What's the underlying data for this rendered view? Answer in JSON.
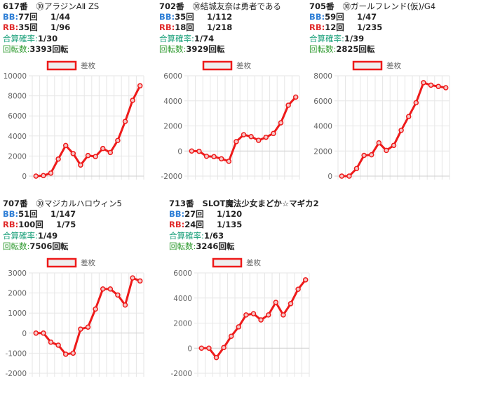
{
  "colors": {
    "bb": "#2f7fd6",
    "rb": "#e02a2a",
    "gassan": "#1aa07a",
    "kaiten": "#2e9a2e",
    "line": "#ee1a1a",
    "grid": "#e6e6e6"
  },
  "labels": {
    "bb": "BB:",
    "rb": "RB:",
    "gassan": "合算確率:",
    "kaiten": "回転数:"
  },
  "legend_label": "差枚",
  "machines": [
    {
      "number": "617番",
      "name": "㉚アラジンAⅡ ZS",
      "bb": "77回",
      "bb_prob": "1/44",
      "rb": "35回",
      "rb_prob": "1/96",
      "gassan": "1/30",
      "kaiten": "3393回転"
    },
    {
      "number": "702番",
      "name": "㉚結城友奈は勇者である",
      "bb": "35回",
      "bb_prob": "1/112",
      "rb": "18回",
      "rb_prob": "1/218",
      "gassan": "1/74",
      "kaiten": "3929回転"
    },
    {
      "number": "705番",
      "name": "㉚ガールフレンド(仮)/G4",
      "bb": "59回",
      "bb_prob": "1/47",
      "rb": "12回",
      "rb_prob": "1/235",
      "gassan": "1/39",
      "kaiten": "2825回転"
    },
    {
      "number": "707番",
      "name": "㉚マジカルハロウィン5",
      "bb": "51回",
      "bb_prob": "1/147",
      "rb": "100回",
      "rb_prob": "1/75",
      "gassan": "1/49",
      "kaiten": "7506回転"
    },
    {
      "number": "713番",
      "name": "SLOT魔法少女まどか☆マギカ2",
      "bb": "27回",
      "bb_prob": "1/120",
      "rb": "24回",
      "rb_prob": "1/135",
      "gassan": "1/63",
      "kaiten": "3246回転"
    }
  ],
  "chart_data": [
    {
      "type": "line",
      "series": [
        {
          "name": "差枚",
          "values": [
            0,
            50,
            300,
            1700,
            3050,
            2250,
            1100,
            2050,
            1950,
            2750,
            2350,
            3550,
            5450,
            7550,
            9000
          ]
        }
      ],
      "ylim": [
        0,
        10000
      ],
      "yticks": [
        0,
        2000,
        4000,
        6000,
        8000,
        10000
      ],
      "grid": true,
      "legend": "top"
    },
    {
      "type": "line",
      "series": [
        {
          "name": "差枚",
          "values": [
            0,
            -20,
            -420,
            -450,
            -620,
            -820,
            750,
            1300,
            1150,
            850,
            1100,
            1400,
            2250,
            3650,
            4300
          ]
        }
      ],
      "ylim": [
        -2000,
        6000
      ],
      "yticks": [
        -2000,
        0,
        2000,
        4000,
        6000
      ],
      "grid": true,
      "legend": "top"
    },
    {
      "type": "line",
      "series": [
        {
          "name": "差枚",
          "values": [
            0,
            0,
            600,
            1650,
            1700,
            2650,
            2050,
            2450,
            3650,
            4750,
            5850,
            7450,
            7250,
            7150,
            7050
          ]
        }
      ],
      "ylim": [
        0,
        8000
      ],
      "yticks": [
        0,
        2000,
        4000,
        6000,
        8000
      ],
      "grid": true,
      "legend": "top"
    },
    {
      "type": "line",
      "series": [
        {
          "name": "差枚",
          "values": [
            0,
            0,
            -450,
            -600,
            -1050,
            -1000,
            200,
            300,
            1200,
            2200,
            2200,
            1900,
            1400,
            2750,
            2600
          ]
        }
      ],
      "ylim": [
        -2000,
        3000
      ],
      "yticks": [
        -2000,
        -1000,
        0,
        1000,
        2000,
        3000
      ],
      "grid": true,
      "legend": "top"
    },
    {
      "type": "line",
      "series": [
        {
          "name": "差枚",
          "values": [
            0,
            0,
            -750,
            50,
            950,
            1700,
            2650,
            2750,
            2250,
            2650,
            3650,
            2650,
            3550,
            4700,
            5450
          ]
        }
      ],
      "ylim": [
        -2000,
        6000
      ],
      "yticks": [
        -2000,
        0,
        2000,
        4000,
        6000
      ],
      "grid": true,
      "legend": "top"
    }
  ]
}
